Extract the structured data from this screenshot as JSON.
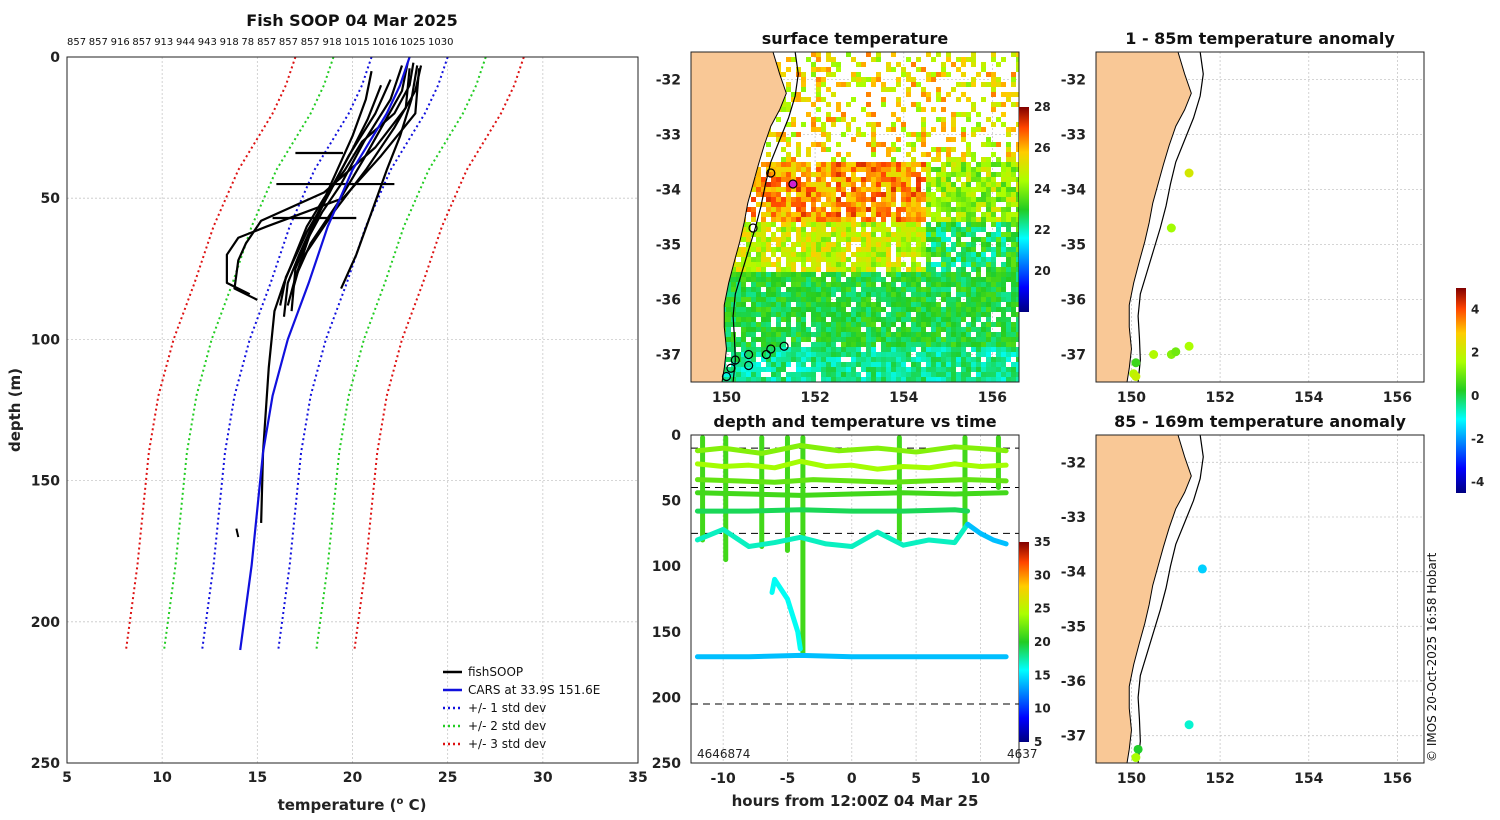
{
  "copyright": "© IMOS 20-Oct-2025 16:58 Hobart",
  "chart_data": [
    {
      "id": "profile",
      "type": "line",
      "title": "Fish SOOP 04 Mar 2025",
      "top_labels": [
        "857",
        "857",
        "916",
        "857",
        "913",
        "944",
        "943",
        "918",
        "78",
        "857",
        "857",
        "857",
        "918",
        "1015",
        "1016",
        "1025",
        "1030"
      ],
      "xlabel_prefix": "temperature (",
      "xlabel_sup": "o",
      "xlabel_suffix": " C)",
      "ylabel": "depth (m)",
      "xlim": [
        5,
        35
      ],
      "ylim": [
        250,
        0
      ],
      "xticks": [
        5,
        10,
        15,
        20,
        25,
        30,
        35
      ],
      "yticks": [
        0,
        50,
        100,
        150,
        200,
        250
      ],
      "cars_depth": [
        0,
        10,
        20,
        40,
        60,
        80,
        100,
        120,
        140,
        160,
        180,
        200,
        210
      ],
      "series": [
        {
          "name": "CARS at 33.9S 151.6E",
          "color": "#1010dd",
          "style": "solid",
          "temp": [
            23.0,
            22.5,
            21.8,
            20.0,
            18.7,
            17.7,
            16.6,
            15.8,
            15.3,
            15.0,
            14.7,
            14.3,
            14.1
          ]
        },
        {
          "name": "+/- 1 std dev",
          "color": "#1010dd",
          "style": "dotted",
          "offset": 2.0
        },
        {
          "name": "+/- 2 std dev",
          "color": "#22cc22",
          "style": "dotted",
          "offset": 4.0
        },
        {
          "name": "+/- 3 std dev",
          "color": "#dd1111",
          "style": "dotted",
          "offset": 6.0
        },
        {
          "name": "fishSOOP",
          "color": "#000000",
          "style": "solid",
          "profiles": [
            {
              "temp": [
                23.2,
                23.0,
                22.2,
                20.5,
                19.6,
                18.5,
                17.6,
                17.0,
                16.4,
                15.9,
                15.6,
                15.3,
                15.2
              ],
              "depth": [
                2,
                10,
                20,
                30,
                40,
                50,
                60,
                70,
                80,
                90,
                110,
                140,
                165
              ]
            },
            {
              "temp": [
                22.6,
                22.0,
                20.6,
                19.4,
                18.4,
                17.6,
                17.0,
                16.8
              ],
              "depth": [
                3,
                15,
                30,
                45,
                55,
                65,
                75,
                90
              ]
            },
            {
              "temp": [
                21.0,
                20.7,
                20.0,
                19.2,
                18.2,
                17.2,
                16.6,
                16.4
              ],
              "depth": [
                5,
                15,
                28,
                40,
                55,
                70,
                80,
                92
              ]
            },
            {
              "temp": [
                23.5,
                23.3,
                21.5,
                19.5,
                17.5,
                15.5,
                14.0,
                13.4,
                13.4,
                14.6
              ],
              "depth": [
                4,
                20,
                35,
                50,
                55,
                60,
                64,
                70,
                80,
                84
              ]
            },
            {
              "temp": [
                22.0,
                21.2,
                19.8,
                18.8,
                17.6,
                16.5,
                16.2
              ],
              "depth": [
                8,
                20,
                35,
                48,
                62,
                78,
                88
              ]
            },
            {
              "temp": [
                23.4,
                23.1,
                22.5,
                21.8,
                21.0,
                20.2,
                19.4
              ],
              "depth": [
                3,
                15,
                28,
                40,
                55,
                70,
                82
              ]
            },
            {
              "temp": [
                22.9,
                22.6,
                21.6,
                20.6,
                19.2,
                17.8,
                17.0,
                16.6
              ],
              "depth": [
                2,
                12,
                24,
                36,
                52,
                66,
                78,
                88
              ]
            },
            {
              "temp": [
                23.6,
                23.3,
                22.2,
                20.7,
                19.0,
                17.3,
                16.8
              ],
              "depth": [
                3,
                12,
                25,
                40,
                55,
                72,
                84
              ]
            },
            {
              "temp": [
                21.5,
                20.8,
                19.9,
                19.0,
                17.9,
                17.0
              ],
              "depth": [
                10,
                22,
                34,
                45,
                60,
                78
              ]
            },
            {
              "temp": [
                23.0,
                22.8,
                21.2,
                18.5,
                15.2,
                14.4,
                14.0,
                13.8,
                15.0
              ],
              "depth": [
                4,
                18,
                32,
                48,
                58,
                66,
                72,
                82,
                86
              ]
            },
            {
              "temp": [
                16.0,
                18.0,
                20.0,
                22.2
              ],
              "depth": [
                45,
                45,
                45,
                45
              ]
            },
            {
              "temp": [
                17.0,
                18.5,
                19.5
              ],
              "depth": [
                34,
                34,
                34
              ]
            },
            {
              "temp": [
                15.8,
                18.0,
                20.2
              ],
              "depth": [
                57,
                57,
                57
              ]
            }
          ]
        }
      ],
      "legend": [
        "fishSOOP",
        "CARS at 33.9S 151.6E",
        "+/- 1 std dev",
        "+/- 2 std dev",
        "+/- 3 std dev"
      ]
    },
    {
      "id": "sst_map",
      "type": "heatmap",
      "title": "surface temperature",
      "xlim": [
        149.2,
        156.6
      ],
      "ylim": [
        -37.5,
        -31.5
      ],
      "xticks": [
        150,
        152,
        154,
        156
      ],
      "yticks": [
        -32,
        -33,
        -34,
        -35,
        -36,
        -37
      ],
      "colorbar_ticks": [
        20,
        22,
        24,
        26,
        28
      ],
      "colorbar_range": [
        18,
        28
      ],
      "stations": [
        [
          150.2,
          -37.1
        ],
        [
          150.1,
          -37.25
        ],
        [
          150.0,
          -37.4
        ],
        [
          150.5,
          -37.0
        ],
        [
          150.5,
          -37.2
        ],
        [
          150.9,
          -37.0
        ],
        [
          151.0,
          -36.9
        ],
        [
          151.3,
          -36.85
        ],
        [
          150.6,
          -34.7
        ],
        [
          151.0,
          -33.7
        ],
        [
          151.5,
          -33.9
        ]
      ]
    },
    {
      "id": "anomaly_shallow",
      "type": "scatter",
      "title": "1 - 85m temperature anomaly",
      "xlim": [
        149.2,
        156.6
      ],
      "ylim": [
        -37.5,
        -31.5
      ],
      "xticks": [
        150,
        152,
        154,
        156
      ],
      "yticks": [
        -32,
        -33,
        -34,
        -35,
        -36,
        -37
      ],
      "points": [
        [
          151.3,
          -33.7,
          2.2
        ],
        [
          150.9,
          -34.7,
          1.5
        ],
        [
          150.1,
          -37.15,
          0.5
        ],
        [
          150.05,
          -37.35,
          1.8
        ],
        [
          150.1,
          -37.4,
          2.0
        ],
        [
          150.5,
          -37.0,
          1.7
        ],
        [
          150.9,
          -37.0,
          1.2
        ],
        [
          151.0,
          -36.95,
          1.0
        ],
        [
          151.3,
          -36.85,
          1.6
        ]
      ]
    },
    {
      "id": "anomaly_deep",
      "type": "scatter",
      "title": "85 - 169m temperature anomaly",
      "xlim": [
        149.2,
        156.6
      ],
      "ylim": [
        -37.5,
        -31.5
      ],
      "xticks": [
        150,
        152,
        154,
        156
      ],
      "yticks": [
        -32,
        -33,
        -34,
        -35,
        -36,
        -37
      ],
      "points": [
        [
          151.6,
          -33.95,
          -1.5
        ],
        [
          151.3,
          -36.8,
          -0.8
        ],
        [
          150.15,
          -37.25,
          0.2
        ],
        [
          150.1,
          -37.4,
          1.6
        ]
      ],
      "colorbar_ticks": [
        -4,
        -2,
        0,
        2,
        4
      ],
      "colorbar_range": [
        -4.5,
        5
      ]
    },
    {
      "id": "depth_time",
      "type": "scatter",
      "title": "depth and temperature vs time",
      "xlabel": "hours from 12:00Z 04 Mar 25",
      "xlim": [
        -12.5,
        13
      ],
      "ylim": [
        250,
        0
      ],
      "xticks": [
        -10,
        -5,
        0,
        5,
        10
      ],
      "yticks": [
        0,
        50,
        100,
        150,
        200,
        250
      ],
      "dashed_depths": [
        10,
        40,
        75,
        205
      ],
      "colorbar_ticks": [
        5,
        10,
        15,
        20,
        25,
        30,
        35
      ],
      "colorbar_range": [
        5,
        35
      ],
      "bottom_left_label": "4646874",
      "bottom_right_label": "4637",
      "tracks": [
        {
          "temp": 24,
          "t": [
            -12,
            -10,
            -8,
            -6,
            -4,
            -2,
            0,
            2,
            4,
            6,
            8,
            10,
            12
          ],
          "d": [
            22,
            24,
            23,
            25,
            20,
            24,
            23,
            26,
            24,
            25,
            22,
            24,
            23
          ]
        },
        {
          "temp": 22,
          "t": [
            -12,
            -9,
            -6,
            -3,
            0,
            3,
            6,
            9,
            12
          ],
          "d": [
            34,
            35,
            36,
            34,
            35,
            36,
            35,
            34,
            35
          ]
        },
        {
          "temp": 21,
          "t": [
            -12,
            -8,
            -4,
            0,
            4,
            8,
            12
          ],
          "d": [
            44,
            45,
            46,
            45,
            44,
            45,
            44
          ]
        },
        {
          "temp": 19,
          "t": [
            -12,
            -8,
            -4,
            0,
            4,
            8,
            9
          ],
          "d": [
            58,
            58,
            57,
            58,
            58,
            57,
            58
          ]
        },
        {
          "temp": 17,
          "t": [
            -12,
            -10,
            -8,
            -6,
            -4,
            -2,
            0,
            2,
            4,
            6,
            8,
            9
          ],
          "d": [
            80,
            72,
            85,
            82,
            78,
            83,
            85,
            74,
            84,
            80,
            82,
            68
          ]
        },
        {
          "temp": 14,
          "t": [
            9,
            10,
            11,
            12
          ],
          "d": [
            68,
            75,
            80,
            83
          ]
        },
        {
          "temp": 16,
          "t": [
            -6.2,
            -6,
            -5,
            -4.2,
            -4
          ],
          "d": [
            120,
            110,
            125,
            150,
            163
          ]
        },
        {
          "temp": 14,
          "t": [
            -12,
            -8,
            -4,
            0,
            4,
            8,
            12
          ],
          "d": [
            169,
            169,
            168,
            169,
            169,
            169,
            169
          ]
        },
        {
          "temp": 23,
          "t": [
            -12,
            -10,
            -7,
            -4,
            -1,
            2,
            5,
            8,
            11,
            12
          ],
          "d": [
            12,
            10,
            14,
            8,
            12,
            10,
            13,
            9,
            11,
            12
          ]
        }
      ],
      "vertical_casts": [
        [
          -11.6,
          2,
          80
        ],
        [
          -9.8,
          2,
          95
        ],
        [
          -7.0,
          2,
          85
        ],
        [
          -5.0,
          2,
          88
        ],
        [
          -3.8,
          2,
          168
        ],
        [
          3.7,
          2,
          80
        ],
        [
          8.8,
          2,
          70
        ],
        [
          11.4,
          2,
          40
        ]
      ]
    }
  ]
}
